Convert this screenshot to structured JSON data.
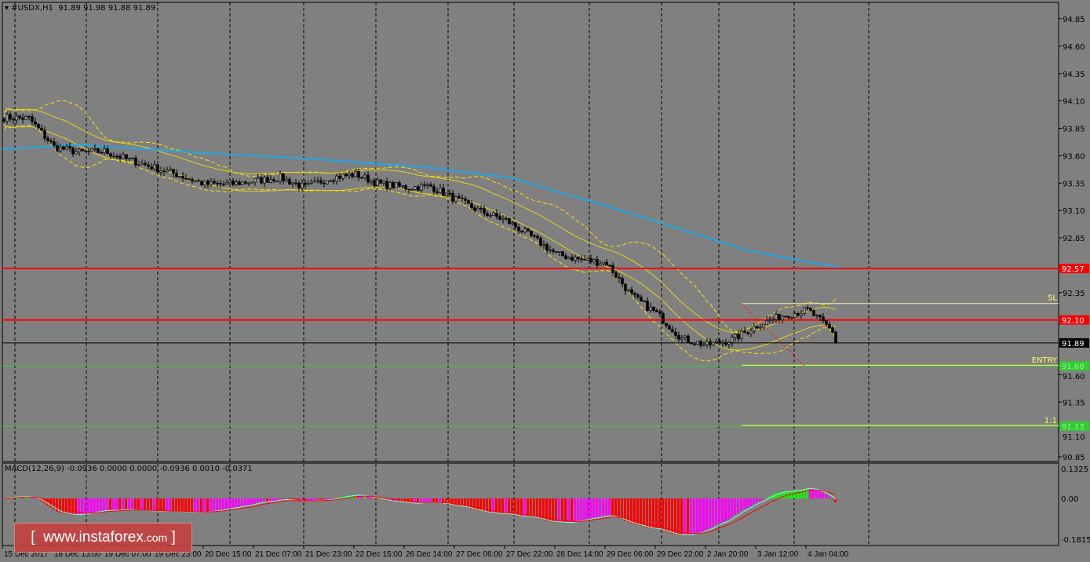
{
  "header": {
    "symbol": "#USDX,H1",
    "ohlc": "91.89 91.98 91.88 91.89"
  },
  "macd_header": "MACD(12,26,9) -0.0936 0.0000 0.0000 -0.0936 0.0010 -0.0371",
  "watermark": {
    "open": "[",
    "site": "www.instaforex",
    "tld": ".com",
    "close": "]"
  },
  "colors": {
    "background": "#808080",
    "ma": "#1EA8E8",
    "bands": "#FFE600",
    "resistance": "#FF0000",
    "target": "#32CD32",
    "macd_up": "#00FF00",
    "macd_down": "#FF00FF",
    "macd_neg": "#FF0000",
    "macd_line": "#7FFFD4",
    "signal_line": "#FF0000"
  },
  "chart_data": [
    {
      "type": "candlestick",
      "title": "#USDX,H1",
      "timeframe": "H1",
      "ylim": [
        90.85,
        94.85
      ],
      "y_ticks": [
        "94.85",
        "94.60",
        "94.35",
        "94.10",
        "93.85",
        "93.60",
        "93.35",
        "93.10",
        "92.85",
        "92.35",
        "91.60",
        "91.35",
        "91.10",
        "90.85"
      ],
      "x_tick_labels": [
        "15 Dec 2017",
        "18 Dec 13:00",
        "19 Dec 07:00",
        "19 Dec 23:00",
        "20 Dec 15:00",
        "21 Dec 07:00",
        "21 Dec 23:00",
        "22 Dec 15:00",
        "26 Dec 14:00",
        "27 Dec 06:00",
        "27 Dec 22:00",
        "28 Dec 14:00",
        "29 Dec 06:00",
        "29 Dec 22:00",
        "2 Jan 20:00",
        "3 Jan 12:00",
        "4 Jan 04:00"
      ],
      "closes_every_8_bars": [
        93.95,
        93.94,
        93.68,
        93.63,
        93.64,
        93.56,
        93.49,
        93.42,
        93.34,
        93.34,
        93.37,
        93.4,
        93.31,
        93.4,
        93.43,
        93.34,
        93.31,
        93.32,
        93.2,
        93.09,
        93.01,
        92.86,
        92.7,
        92.65,
        92.62,
        92.32,
        92.16,
        91.93,
        91.87,
        91.92,
        92.05,
        92.14,
        92.19,
        92.0,
        91.89
      ],
      "moving_average_approx": [
        93.66,
        93.7,
        93.63,
        93.57,
        93.49,
        93.4,
        93.19,
        92.97,
        92.74,
        92.67,
        92.58
      ],
      "last_price": {
        "value": 91.89,
        "label": "91.89"
      },
      "levels": [
        {
          "name": "resistance",
          "value": 92.57,
          "label": "92.57",
          "color": "#FF0000"
        },
        {
          "name": "resistance",
          "value": 92.1,
          "label": "92.10",
          "color": "#FF0000"
        },
        {
          "name": "SL",
          "value": 92.25,
          "text": "SL",
          "color": "#FFFF80"
        },
        {
          "name": "ENTRY",
          "value": 91.68,
          "label": "91.68",
          "text": "ENTRY",
          "color": "#32CD32"
        },
        {
          "name": "1:1",
          "value": 91.13,
          "label": "91.13",
          "text": "1:1",
          "color": "#32CD32"
        }
      ]
    },
    {
      "type": "bar",
      "title": "MACD(12,26,9)",
      "y_ticks": [
        "0.1325",
        "0.00",
        "-0.1815"
      ],
      "ylim": [
        -0.1815,
        0.1325
      ]
    }
  ]
}
